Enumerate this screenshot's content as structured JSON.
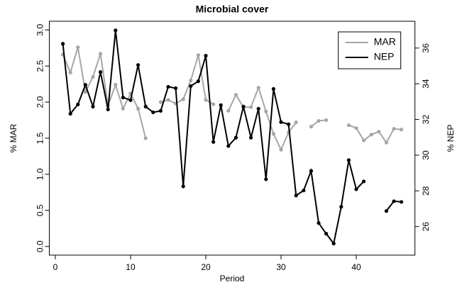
{
  "chart_data": {
    "type": "line",
    "title": "Microbial cover",
    "x_label": "Period",
    "y_label": "% MAR",
    "y2_label": "% NEP",
    "x": [
      1,
      2,
      3,
      4,
      5,
      6,
      7,
      8,
      9,
      10,
      11,
      12,
      13,
      14,
      15,
      16,
      17,
      18,
      19,
      20,
      21,
      22,
      23,
      24,
      25,
      26,
      27,
      28,
      29,
      30,
      31,
      32,
      33,
      34,
      35,
      36,
      37,
      38,
      39,
      40,
      41,
      42,
      43,
      44,
      45,
      46
    ],
    "series": [
      {
        "name": "MAR",
        "color": "#a6a6a6",
        "axis": "y",
        "values": [
          2.66,
          2.41,
          2.76,
          2.14,
          2.35,
          2.67,
          1.95,
          2.24,
          1.91,
          2.12,
          1.91,
          1.5,
          null,
          2.0,
          2.03,
          1.98,
          2.04,
          2.3,
          2.65,
          2.03,
          1.97,
          null,
          1.88,
          2.1,
          1.93,
          1.93,
          2.2,
          1.87,
          1.56,
          1.34,
          1.58,
          1.72,
          null,
          1.66,
          1.74,
          1.75,
          null,
          null,
          1.68,
          1.64,
          1.47,
          1.55,
          1.59,
          1.44,
          1.63,
          1.62
        ]
      },
      {
        "name": "NEP",
        "color": "#000000",
        "axis": "y2",
        "values": [
          36.24,
          32.32,
          32.84,
          33.94,
          32.72,
          34.66,
          32.56,
          36.99,
          33.23,
          33.08,
          35.05,
          32.72,
          32.4,
          32.48,
          33.83,
          33.75,
          28.25,
          33.87,
          34.14,
          35.57,
          30.74,
          32.8,
          30.51,
          30.98,
          32.72,
          30.98,
          32.6,
          28.65,
          33.71,
          31.85,
          31.73,
          27.74,
          28.02,
          29.12,
          26.2,
          25.6,
          25.05,
          27.11,
          29.72,
          28.09,
          28.53,
          null,
          null,
          26.87,
          27.42,
          27.38
        ]
      }
    ],
    "xlim": [
      -0.8,
      47.8
    ],
    "xticks": [
      0,
      10,
      20,
      30,
      40
    ],
    "ylim": [
      -0.12,
      3.12
    ],
    "yticks": [
      {
        "value": 0,
        "label": "0.0"
      },
      {
        "value": 0.5,
        "label": "0.5"
      },
      {
        "value": 1,
        "label": "1.0"
      },
      {
        "value": 1.5,
        "label": "1.5"
      },
      {
        "value": 2,
        "label": "2.0"
      },
      {
        "value": 2.5,
        "label": "2.5"
      },
      {
        "value": 3,
        "label": "3.0"
      }
    ],
    "y2lim": [
      24.4,
      37.5
    ],
    "y2ticks": [
      26,
      28,
      30,
      32,
      34,
      36
    ],
    "legend": "top-right"
  }
}
